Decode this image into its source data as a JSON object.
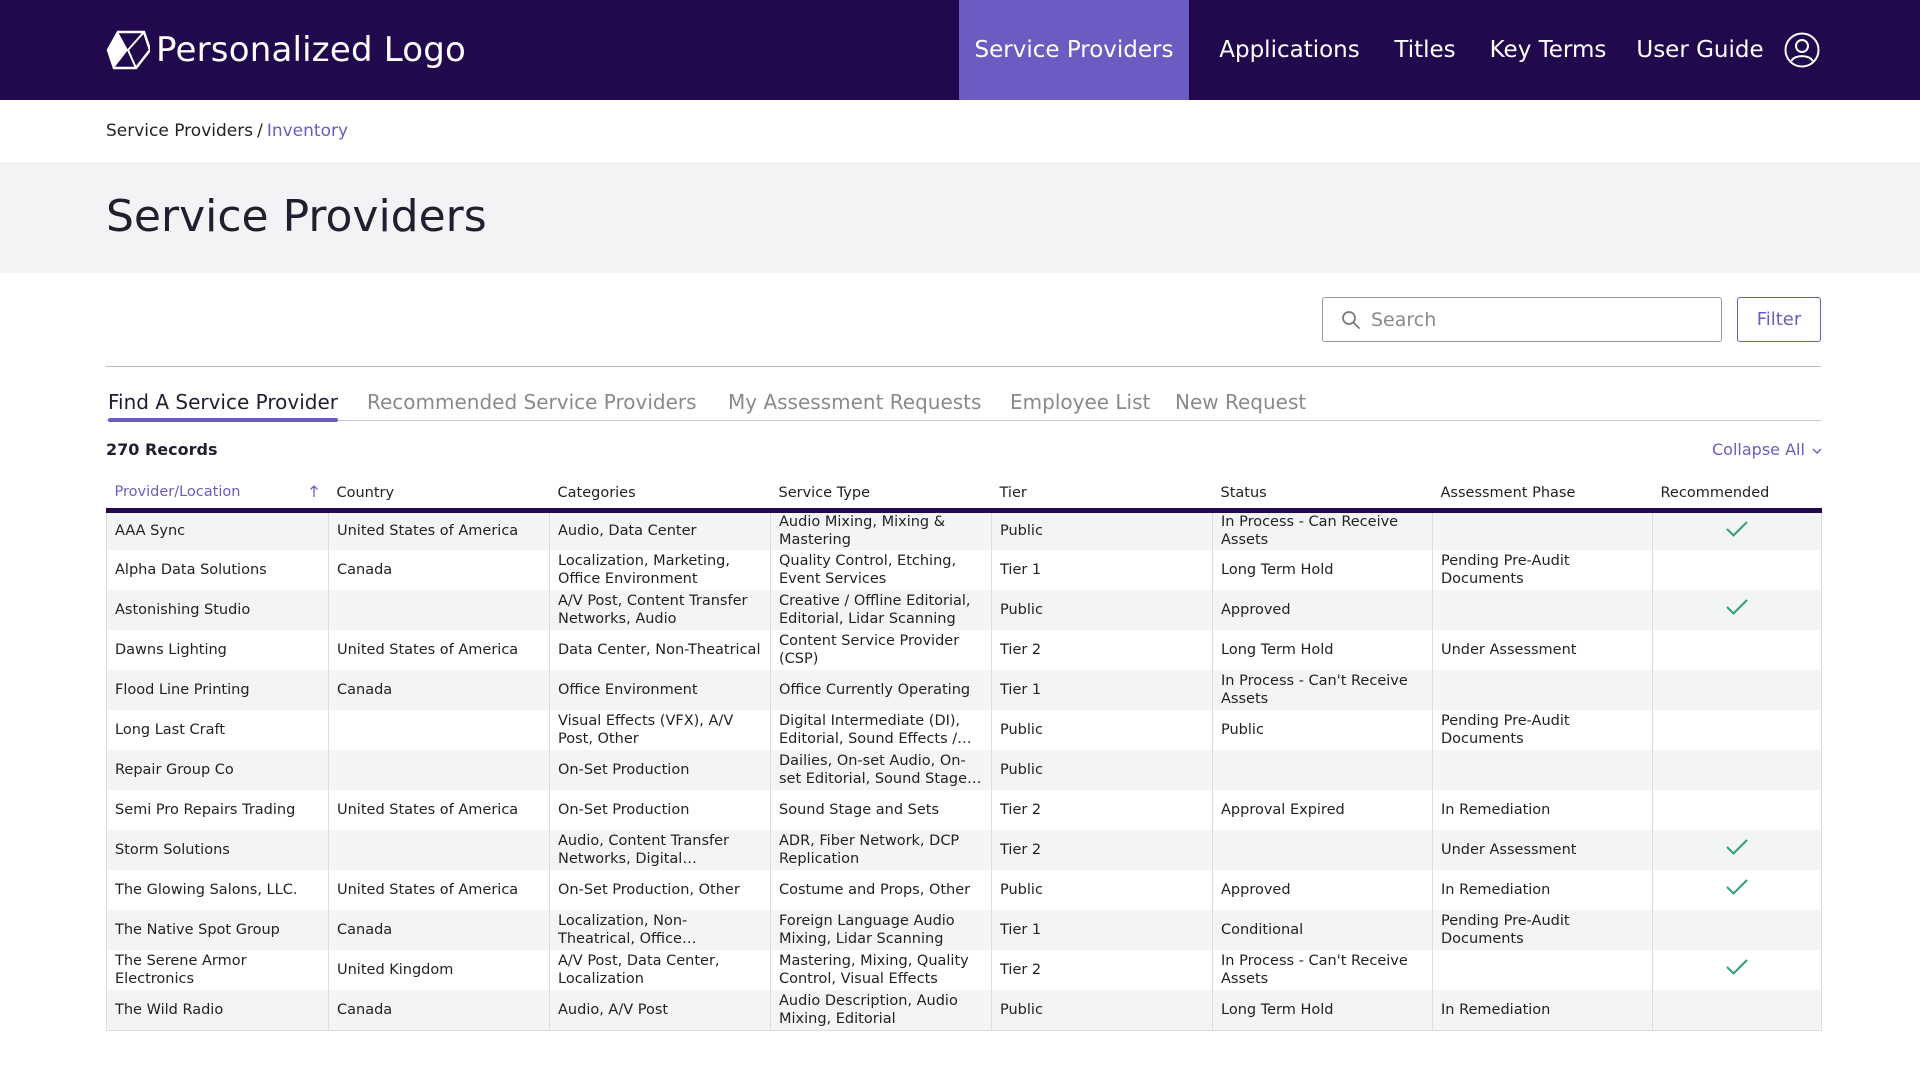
{
  "header": {
    "logo_text": "Personalized Logo",
    "nav": [
      {
        "label": "Service Providers",
        "active": true
      },
      {
        "label": "Applications"
      },
      {
        "label": "Titles"
      },
      {
        "label": "Key Terms"
      },
      {
        "label": "User Guide"
      }
    ],
    "user_icon": "user-circle-icon"
  },
  "breadcrumb": {
    "parent": "Service Providers",
    "separator": "/",
    "current": "Inventory"
  },
  "page": {
    "title": "Service Providers"
  },
  "search": {
    "placeholder": "Search",
    "value": ""
  },
  "filter": {
    "label": "Filter"
  },
  "tabs": [
    {
      "label": "Find A Service Provider",
      "active": true
    },
    {
      "label": "Recommended Service Providers"
    },
    {
      "label": "My Assessment Requests"
    },
    {
      "label": "Employee List"
    },
    {
      "label": "New Request"
    }
  ],
  "records": "270 Records",
  "collapse_all": "Collapse All",
  "table": {
    "columns": [
      "Provider/Location",
      "Country",
      "Categories",
      "Service Type",
      "Tier",
      "Status",
      "Assessment Phase",
      "Recommended"
    ],
    "sorted_column": "Provider/Location",
    "sort_direction": "ascending",
    "rows": [
      [
        "AAA Sync",
        "United States of America",
        "Audio, Data Center",
        "Audio Mixing, Mixing & Mastering",
        "Public",
        "In Process - Can Receive Assets",
        "",
        true
      ],
      [
        "Alpha Data Solutions",
        "Canada",
        "Localization, Marketing, Office Environment",
        "Quality Control,  Etching, Event Services",
        "Tier 1",
        "Long Term Hold",
        "Pending Pre-Audit Documents",
        false
      ],
      [
        "Astonishing Studio",
        "",
        "A/V Post, Content Transfer Networks, Audio",
        "Creative / Offline Editorial, Editorial, Lidar Scanning",
        "Public",
        "Approved",
        "",
        true
      ],
      [
        "Dawns Lighting",
        "United States of America",
        "Data Center, Non-Theatrical",
        "Content Service Provider (CSP)",
        "Tier 2",
        "Long Term Hold",
        "Under Assessment",
        false
      ],
      [
        "Flood Line Printing",
        "Canada",
        "Office Environment",
        "Office Currently Operating",
        "Tier 1",
        "In Process - Can't Receive Assets",
        "",
        false
      ],
      [
        "Long Last Craft",
        "",
        "Visual Effects (VFX),  A/V Post, Other",
        "Digital Intermediate (DI), Editorial, Sound Effects / Des…",
        "Public",
        "Public",
        "Pending Pre-Audit Documents",
        false
      ],
      [
        "Repair Group Co",
        "",
        "On-Set Production",
        "Dailies, On-set Audio, On-set Editorial, Sound Stage and S…",
        "Public",
        "",
        "",
        false
      ],
      [
        "Semi Pro Repairs Trading",
        "United States of America",
        "On-Set Production",
        "Sound Stage and Sets",
        "Tier 2",
        "Approval Expired",
        "In Remediation",
        false
      ],
      [
        "Storm Solutions",
        "",
        "Audio, Content Transfer Networks, Digital Intermedia…",
        "ADR, Fiber Network, DCP Replication",
        "Tier 2",
        "",
        "Under Assessment",
        true
      ],
      [
        "The Glowing Salons, LLC.",
        "United States of America",
        "On-Set Production, Other",
        "Costume and Props, Other",
        "Public",
        "Approved",
        "In Remediation",
        true
      ],
      [
        "The Native Spot Group",
        "Canada",
        "Localization, Non-Theatrical, Office Environment",
        "Foreign Language Audio Mixing, Lidar Scanning",
        "Tier 1",
        "Conditional",
        "Pending Pre-Audit Documents",
        false
      ],
      [
        "The Serene Armor Electronics",
        "United Kingdom",
        "A/V Post, Data Center, Localization",
        "Mastering, Mixing, Quality Control, Visual Effects",
        "Tier 2",
        "In Process - Can't Receive Assets",
        "",
        true
      ],
      [
        "The Wild Radio",
        "Canada",
        "Audio, A/V Post",
        "Audio Description,  Audio Mixing, Editorial",
        "Public",
        "Long Term Hold",
        "In Remediation",
        false
      ]
    ]
  },
  "colors": {
    "header_bg": "#22094e",
    "accent": "#6a5cc0",
    "check": "#2e9e7a"
  }
}
